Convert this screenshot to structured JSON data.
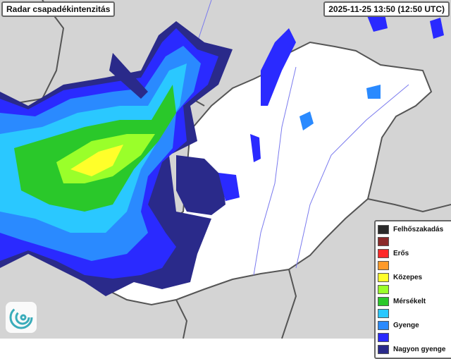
{
  "header": {
    "title": "Radar csapadékintenzitás",
    "timestamp": "2025-11-25 13:50 (12:50 UTC)"
  },
  "legend": {
    "items": [
      {
        "label": "Felhőszakadás",
        "color": "#2a2a2a"
      },
      {
        "label": "",
        "color": "#8b2a2a"
      },
      {
        "label": "Erős",
        "color": "#ff2a2a"
      },
      {
        "label": "",
        "color": "#ff9a2a"
      },
      {
        "label": "Közepes",
        "color": "#ffff2a"
      },
      {
        "label": "",
        "color": "#9aff2a"
      },
      {
        "label": "Mérsékelt",
        "color": "#2ac82a"
      },
      {
        "label": "",
        "color": "#2ac8ff"
      },
      {
        "label": "Gyenge",
        "color": "#2a8aff"
      },
      {
        "label": "",
        "color": "#2a2aff"
      },
      {
        "label": "Nagyon gyenge",
        "color": "#2a2a8a"
      }
    ]
  },
  "colors": {
    "background": "#d4d4d4",
    "country": "#ffffff",
    "border": "#555555",
    "rivers": "#7a7aee"
  },
  "logo": {
    "icon": "radar-swirl-logo"
  }
}
